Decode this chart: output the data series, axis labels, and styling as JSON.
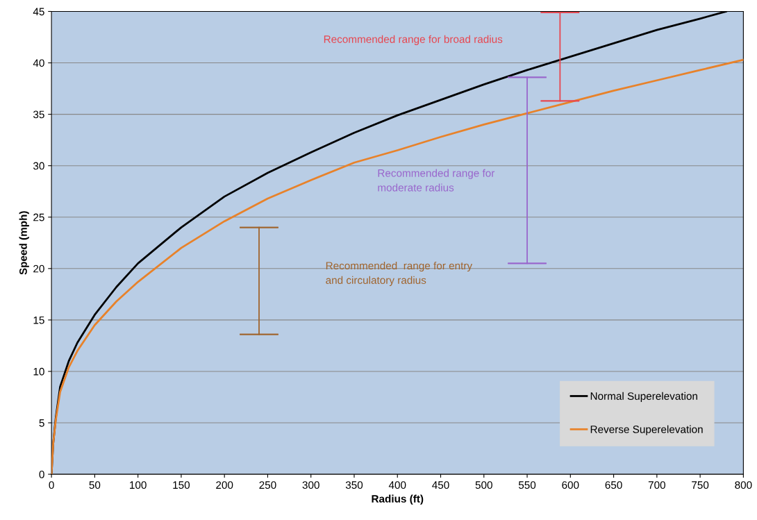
{
  "chart_data": {
    "type": "line",
    "xlabel": "Radius (ft)",
    "ylabel": "Speed (mph)",
    "xlim": [
      0,
      800
    ],
    "xticks": [
      0,
      50,
      100,
      150,
      200,
      250,
      300,
      350,
      400,
      450,
      500,
      550,
      600,
      650,
      700,
      750,
      800
    ],
    "ylim": [
      0,
      45
    ],
    "yticks": [
      0,
      5,
      10,
      15,
      20,
      25,
      30,
      35,
      40,
      45
    ],
    "grid": "y",
    "legend": "bottom right",
    "series": [
      {
        "name": "Normal Superelevation",
        "color": "#000000",
        "x": [
          0,
          2,
          5,
          10,
          20,
          30,
          50,
          75,
          100,
          150,
          200,
          250,
          300,
          350,
          400,
          450,
          500,
          550,
          600,
          650,
          700,
          750,
          780
        ],
        "values": [
          0,
          3,
          5.5,
          8.5,
          11,
          12.8,
          15.5,
          18.2,
          20.5,
          24,
          27,
          29.3,
          31.3,
          33.2,
          34.9,
          36.4,
          37.9,
          39.3,
          40.6,
          41.9,
          43.2,
          44.3,
          45
        ]
      },
      {
        "name": "Reverse Superelevation",
        "color": "#e8822a",
        "x": [
          0,
          2,
          5,
          10,
          20,
          30,
          50,
          75,
          100,
          150,
          200,
          250,
          300,
          350,
          400,
          450,
          500,
          550,
          600,
          650,
          700,
          750,
          800
        ],
        "values": [
          0,
          3,
          5.3,
          8,
          10.4,
          12,
          14.5,
          16.8,
          18.7,
          22,
          24.6,
          26.8,
          28.6,
          30.3,
          31.5,
          32.8,
          34,
          35.1,
          36.2,
          37.3,
          38.3,
          39.3,
          40.3
        ]
      },
      {
        "type": "line",
        "color": "#a0642d",
        "x": [
          240,
          240
        ],
        "values": [
          13.6,
          24
        ]
      },
      {
        "type": "line",
        "color": "#9966cc",
        "x": [
          550,
          550
        ],
        "values": [
          20.5,
          38.6
        ]
      },
      {
        "type": "line",
        "color": "#e8464f",
        "x": [
          588,
          588
        ],
        "values": [
          36.3,
          44.9
        ]
      }
    ],
    "annotations": [
      "Recommended  range for entry\nand circulatory radius",
      "Recommended range for\nmoderate radius",
      "Recommended range for broad radius"
    ]
  }
}
